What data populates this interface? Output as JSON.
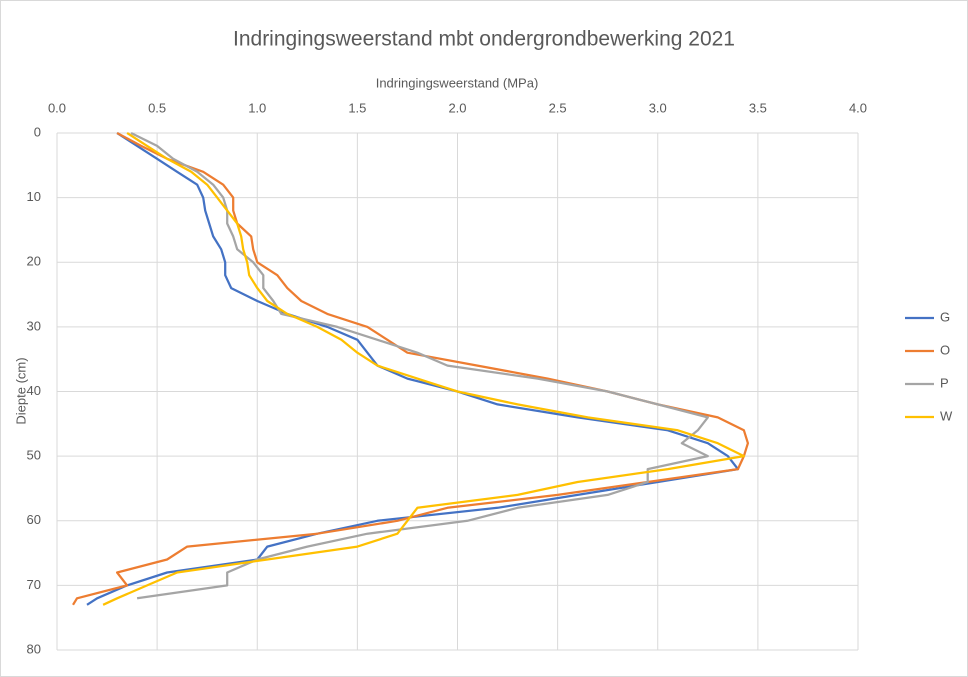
{
  "chart_data": {
    "type": "line",
    "title": "Indringingsweerstand mbt ondergrondbewerking 2021",
    "x_label": "Indringingsweerstand (MPa)",
    "y_label": "Diepte (cm)",
    "y_inverted": true,
    "x_axis_position": "top",
    "grid": true,
    "legend": "right",
    "depths": [
      0,
      2,
      4,
      6,
      8,
      10,
      12,
      14,
      16,
      18,
      20,
      22,
      24,
      26,
      28,
      30,
      32,
      34,
      36,
      38,
      40,
      42,
      44,
      46,
      48,
      50,
      52,
      54,
      56,
      58,
      60,
      62,
      64,
      66,
      68,
      70,
      72,
      73
    ],
    "xlim": [
      0,
      4
    ],
    "xticks": [
      {
        "value": 0,
        "label": "0.0"
      },
      0.5,
      {
        "value": 1,
        "label": "1.0"
      },
      1.5,
      {
        "value": 2,
        "label": "2.0"
      },
      2.5,
      {
        "value": 3,
        "label": "3.0"
      },
      3.5,
      {
        "value": 4,
        "label": "4.0"
      }
    ],
    "ylim": [
      0,
      80
    ],
    "yticks": [
      0,
      10,
      20,
      30,
      40,
      50,
      60,
      70,
      80
    ],
    "series": [
      {
        "name": "G",
        "color": "#4472c4",
        "values": [
          0.3,
          0.4,
          0.5,
          0.6,
          0.7,
          0.73,
          0.74,
          0.76,
          0.78,
          0.82,
          0.84,
          0.84,
          0.87,
          1.0,
          1.15,
          1.35,
          1.5,
          1.55,
          1.6,
          1.75,
          2.0,
          2.2,
          2.6,
          3.05,
          3.25,
          3.35,
          3.4,
          3.0,
          2.6,
          2.2,
          1.6,
          1.3,
          1.05,
          1.0,
          0.55,
          0.35,
          0.2,
          0.15
        ]
      },
      {
        "name": "O",
        "color": "#ed7d31",
        "values": [
          0.3,
          0.42,
          0.55,
          0.73,
          0.83,
          0.88,
          0.88,
          0.9,
          0.97,
          0.98,
          1.0,
          1.1,
          1.15,
          1.22,
          1.35,
          1.55,
          1.65,
          1.75,
          2.1,
          2.45,
          2.75,
          3.0,
          3.3,
          3.43,
          3.45,
          3.43,
          3.4,
          2.95,
          2.5,
          1.95,
          1.7,
          1.3,
          0.65,
          0.55,
          0.3,
          0.35,
          0.1,
          0.08
        ]
      },
      {
        "name": "P",
        "color": "#a5a5a5",
        "values": [
          0.37,
          0.5,
          0.58,
          0.7,
          0.78,
          0.83,
          0.85,
          0.85,
          0.88,
          0.9,
          0.98,
          1.03,
          1.03,
          1.08,
          1.12,
          1.4,
          1.6,
          1.8,
          1.95,
          2.4,
          2.75,
          3.0,
          3.25,
          3.2,
          3.12,
          3.25,
          2.95,
          2.95,
          2.75,
          2.3,
          2.05,
          1.55,
          1.25,
          1.0,
          0.85,
          0.85,
          0.4,
          null
        ]
      },
      {
        "name": "W",
        "color": "#ffc000",
        "values": [
          0.35,
          0.45,
          0.55,
          0.67,
          0.75,
          0.8,
          0.85,
          0.9,
          0.92,
          0.93,
          0.95,
          0.96,
          1.0,
          1.05,
          1.15,
          1.3,
          1.42,
          1.5,
          1.6,
          1.8,
          2.0,
          2.3,
          2.65,
          3.1,
          3.3,
          3.43,
          3.05,
          2.6,
          2.3,
          1.8,
          1.75,
          1.7,
          1.5,
          1.05,
          0.6,
          0.45,
          0.3,
          0.23
        ]
      }
    ]
  }
}
